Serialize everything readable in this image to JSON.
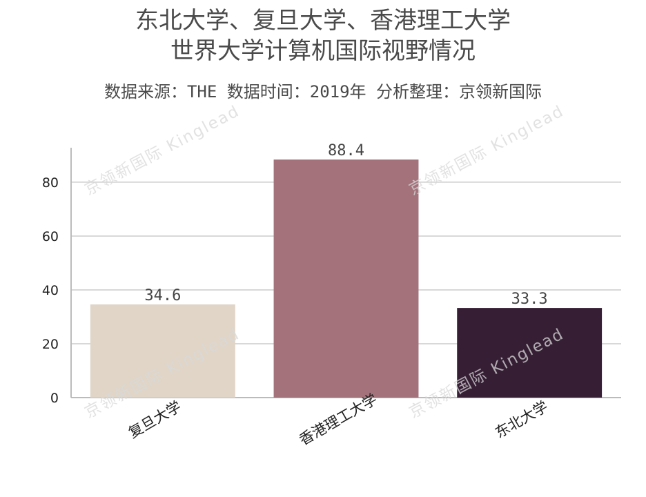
{
  "chart_data": {
    "type": "bar",
    "title_lines": [
      "东北大学、复旦大学、香港理工大学",
      "世界大学计算机国际视野情况"
    ],
    "subtitle": "数据来源：THE 数据时间：2019年 分析整理：京领新国际",
    "categories": [
      "复旦大学",
      "香港理工大学",
      "东北大学"
    ],
    "values": [
      34.6,
      88.4,
      33.3
    ],
    "value_labels": [
      "34.6",
      "88.4",
      "33.3"
    ],
    "colors": [
      "#e0d5c6",
      "#a3727b",
      "#361f35"
    ],
    "yticks": [
      0,
      20,
      40,
      60,
      80
    ],
    "ylim": [
      0,
      92.8
    ],
    "grid": true,
    "legend": "none"
  },
  "watermark": {
    "text": "京领新国际 Kinglead",
    "color": "#d9d9d9"
  }
}
